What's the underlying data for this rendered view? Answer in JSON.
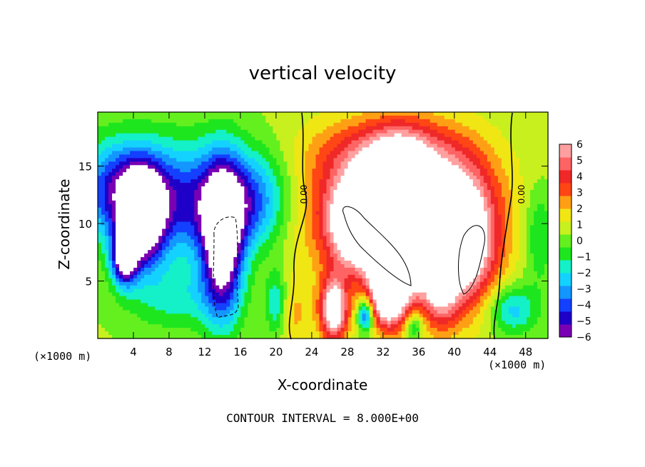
{
  "chart_data": {
    "type": "heatmap",
    "title": "vertical velocity",
    "xlabel": "X-coordinate",
    "ylabel": "Z-coordinate",
    "x_unit_left": "(×1000 m)",
    "x_unit_right": "(×1000 m)",
    "x_ticks": [
      4,
      8,
      12,
      16,
      20,
      24,
      28,
      32,
      36,
      40,
      44,
      48
    ],
    "y_ticks": [
      5,
      10,
      15
    ],
    "xlim": [
      0,
      50.5
    ],
    "ylim": [
      0,
      19.7
    ],
    "colorbar": {
      "ticks": [
        6,
        5,
        4,
        3,
        2,
        1,
        0,
        "−1",
        "−2",
        "−3",
        "−4",
        "−5",
        "−6"
      ],
      "range": [
        -6,
        6
      ],
      "colors": [
        "#7a00b4",
        "#1e00c8",
        "#1440ff",
        "#1496ff",
        "#14d2ff",
        "#14f0c8",
        "#1ee61e",
        "#64f01e",
        "#c8f01e",
        "#f0e614",
        "#ffa014",
        "#ff4614",
        "#f02828",
        "#ff6464",
        "#ffa0a0"
      ]
    },
    "contour_labels": [
      "0.00",
      "0.00"
    ],
    "annotation": "CONTOUR INTERVAL = 8.000E+00",
    "blobs": [
      {
        "x": 5.0,
        "z": 10.5,
        "w": -8.0,
        "sx": 1.6,
        "sz": 2.8
      },
      {
        "x": 3.0,
        "z": 7.0,
        "w": -7.0,
        "sx": 1.0,
        "sz": 1.6
      },
      {
        "x": 14.0,
        "z": 8.5,
        "w": -8.0,
        "sx": 1.6,
        "sz": 4.5
      },
      {
        "x": 9.0,
        "z": 12.0,
        "w": -5.0,
        "sx": 5.0,
        "sz": 3.5
      },
      {
        "x": 2.0,
        "z": 13.0,
        "w": -4.0,
        "sx": 3.0,
        "sz": 3.0
      },
      {
        "x": 17.5,
        "z": 12.0,
        "w": -4.0,
        "sx": 3.0,
        "sz": 3.0
      },
      {
        "x": 20.0,
        "z": 3.0,
        "w": -3.0,
        "sx": 0.8,
        "sz": 2.0
      },
      {
        "x": 9.0,
        "z": 3.5,
        "w": -2.0,
        "sx": 4.0,
        "sz": 2.0
      },
      {
        "x": 33.0,
        "z": 11.5,
        "w": 5.0,
        "sx": 7.5,
        "sz": 4.5
      },
      {
        "x": 29.5,
        "z": 10.0,
        "w": 8.0,
        "sx": 2.2,
        "sz": 2.5
      },
      {
        "x": 34.0,
        "z": 9.5,
        "w": 8.0,
        "sx": 2.2,
        "sz": 4.5
      },
      {
        "x": 40.5,
        "z": 8.5,
        "w": 8.0,
        "sx": 2.8,
        "sz": 4.0
      },
      {
        "x": 26.5,
        "z": 2.5,
        "w": 7.0,
        "sx": 1.1,
        "sz": 2.0
      },
      {
        "x": 32.5,
        "z": 4.0,
        "w": 7.0,
        "sx": 1.3,
        "sz": 2.0
      },
      {
        "x": 38.5,
        "z": 5.5,
        "w": 4.0,
        "sx": 1.2,
        "sz": 3.0
      },
      {
        "x": 33.0,
        "z": 16.0,
        "w": 3.0,
        "sx": 5.0,
        "sz": 2.0
      },
      {
        "x": 30.0,
        "z": 2.0,
        "w": -5.0,
        "sx": 0.6,
        "sz": 1.0
      },
      {
        "x": 35.5,
        "z": 1.0,
        "w": -3.0,
        "sx": 0.7,
        "sz": 1.0
      },
      {
        "x": 46.5,
        "z": 2.5,
        "w": -3.0,
        "sx": 2.0,
        "sz": 1.5
      },
      {
        "x": 49.5,
        "z": 9.0,
        "w": -2.0,
        "sx": 1.2,
        "sz": 3.0
      },
      {
        "x": 22.0,
        "z": 2.0,
        "w": 1.5,
        "sx": 1.5,
        "sz": 2.0
      }
    ]
  }
}
